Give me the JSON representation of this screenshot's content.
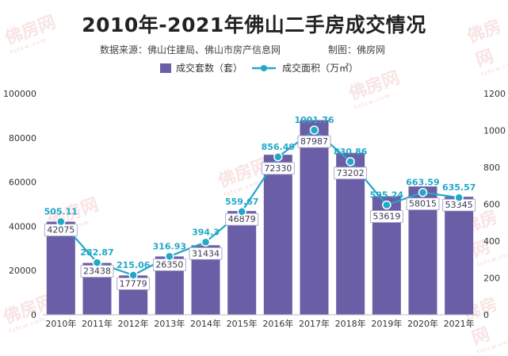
{
  "chart_data": {
    "type": "bar",
    "title": "2010年-2021年佛山二手房成交情况",
    "source": "数据来源：佛山住建局、佛山市房产信息网",
    "credit": "制图：佛房网",
    "categories": [
      "2010年",
      "2011年",
      "2012年",
      "2013年",
      "2014年",
      "2015年",
      "2016年",
      "2017年",
      "2018年",
      "2019年",
      "2020年",
      "2021年"
    ],
    "series": [
      {
        "name": "成交套数（套）",
        "type": "bar",
        "axis": "left",
        "values": [
          42075,
          23438,
          17779,
          26350,
          31434,
          46879,
          72330,
          87987,
          73202,
          53619,
          58015,
          53345
        ],
        "labels": [
          "42075",
          "23438",
          "17779",
          "26350",
          "31434",
          "46879",
          "72330",
          "87987",
          "73202",
          "53619",
          "58015",
          "53345"
        ]
      },
      {
        "name": "成交面积（万㎡）",
        "type": "line",
        "axis": "right",
        "values": [
          505.11,
          282.87,
          215.06,
          316.93,
          394.3,
          559.67,
          856.49,
          1001.76,
          830.86,
          595.24,
          663.59,
          635.57
        ],
        "labels": [
          "505.11",
          "282.87",
          "215.06",
          "316.93",
          "394.3",
          "559.67",
          "856.49",
          "1001.76",
          "830.86",
          "595.24",
          "663.59",
          "635.57"
        ]
      }
    ],
    "y_left": {
      "min": 0,
      "max": 100000,
      "ticks": [
        "0",
        "20000",
        "40000",
        "60000",
        "80000",
        "100000"
      ],
      "tick_values": [
        0,
        20000,
        40000,
        60000,
        80000,
        100000
      ]
    },
    "y_right": {
      "min": 0,
      "max": 1200,
      "ticks": [
        "0",
        "200",
        "400",
        "600",
        "800",
        "1000",
        "1200"
      ],
      "tick_values": [
        0,
        200,
        400,
        600,
        800,
        1000,
        1200
      ]
    },
    "grid": false,
    "legend_position": "top-center"
  },
  "colors": {
    "bar": "#6a5fa6",
    "line": "#22a8c8",
    "title": "#222222"
  },
  "watermark": {
    "text": "佛房网",
    "sub": "fsfcw.com"
  }
}
